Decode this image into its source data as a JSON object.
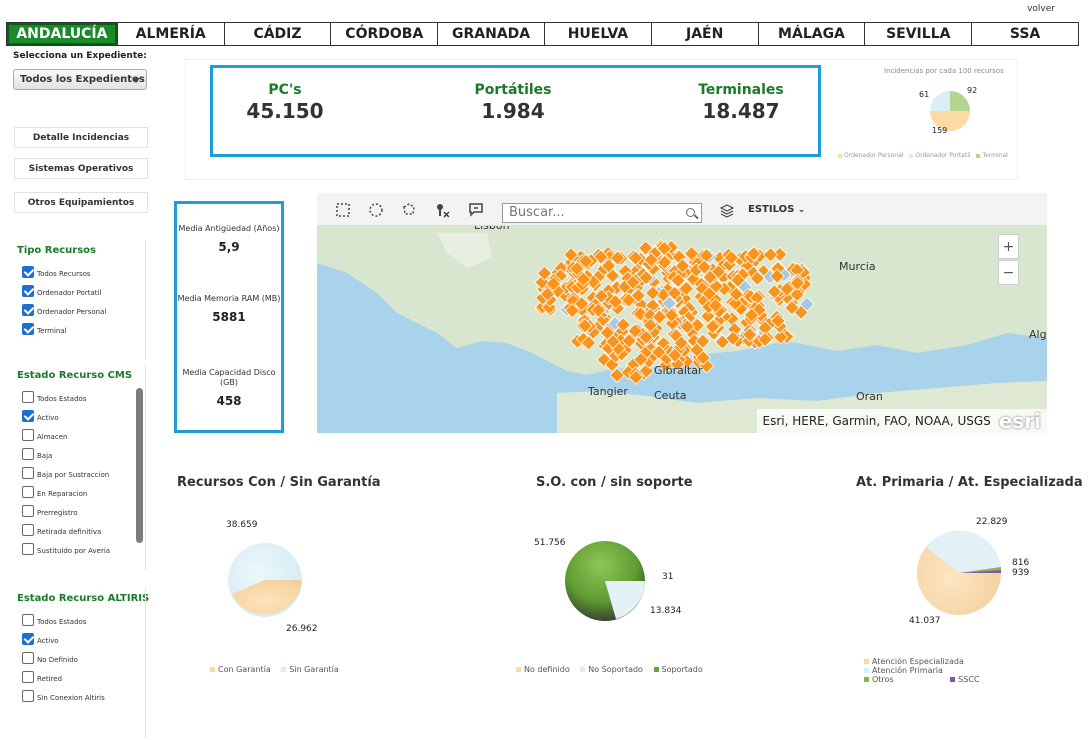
{
  "header": {
    "volver": "volver",
    "tabs": [
      "ANDALUCÍA",
      "ALMERÍA",
      "CÁDIZ",
      "CÓRDOBA",
      "GRANADA",
      "HUELVA",
      "JAÉN",
      "MÁLAGA",
      "SEVILLA",
      "SSA"
    ]
  },
  "sidebar": {
    "expediente_label": "Selecciona un Expediente:",
    "expediente_value": "Todos los Expedientes",
    "buttons": [
      "Detalle Incidencias",
      "Sistemas Operativos",
      "Otros Equipamientos"
    ],
    "tipo": {
      "title": "Tipo Recursos",
      "items": [
        {
          "label": "Todos Recursos",
          "checked": true
        },
        {
          "label": "Ordenador Portatil",
          "checked": true
        },
        {
          "label": "Ordenador Personal",
          "checked": true
        },
        {
          "label": "Terminal",
          "checked": true
        }
      ]
    },
    "cms": {
      "title": "Estado Recurso CMS",
      "items": [
        {
          "label": "Todos Estados",
          "checked": false
        },
        {
          "label": "Activo",
          "checked": true
        },
        {
          "label": "Almacen",
          "checked": false
        },
        {
          "label": "Baja",
          "checked": false
        },
        {
          "label": "Baja por Sustraccion",
          "checked": false
        },
        {
          "label": "En Reparacion",
          "checked": false
        },
        {
          "label": "Prerregistro",
          "checked": false
        },
        {
          "label": "Retirada definitiva",
          "checked": false
        },
        {
          "label": "Sustituido por Averia",
          "checked": false
        }
      ]
    },
    "altiris": {
      "title": "Estado Recurso ALTIRIS",
      "items": [
        {
          "label": "Todos Estados",
          "checked": false
        },
        {
          "label": "Activo",
          "checked": true
        },
        {
          "label": "No Definido",
          "checked": false
        },
        {
          "label": "Retired",
          "checked": false
        },
        {
          "label": "Sin Conexion Altiris",
          "checked": false
        }
      ]
    }
  },
  "stats": {
    "pcs": {
      "label": "PC's",
      "value": "45.150"
    },
    "portatiles": {
      "label": "Portátiles",
      "value": "1.984"
    },
    "terminales": {
      "label": "Terminales",
      "value": "18.487"
    }
  },
  "incidencias": {
    "title": "Incidencias por cada 100 recursos",
    "labels": [
      "61",
      "92",
      "159"
    ],
    "legend": [
      "Ordenador Personal",
      "Ordenador Portatil",
      "Terminal"
    ]
  },
  "info": {
    "antiguedad": {
      "title": "Media Antigüedad (Años)",
      "value": "5,9"
    },
    "memoria": {
      "title": "Media Memoria RAM (MB)",
      "value": "5881"
    },
    "disco": {
      "title": "Media Capacidad Disco (GB)",
      "value": "458"
    }
  },
  "map": {
    "search_placeholder": "Buscar...",
    "estilos": "ESTILOS",
    "zoom_in": "+",
    "zoom_out": "−",
    "attribution": "Esri, HERE, Garmin, FAO, NOAA, USGS",
    "esri": "esri",
    "cities": [
      "Murcia",
      "Tangier",
      "Ceuta",
      "Oran",
      "Alg",
      "Gibraltar",
      "Lisbon"
    ]
  },
  "charts": {
    "garantia": {
      "title": "Recursos Con / Sin Garantía",
      "labels": [
        "38.659",
        "26.962"
      ],
      "legend": [
        "Con Garantía",
        "Sin Garantía"
      ]
    },
    "soporte": {
      "title": "S.O. con / sin soporte",
      "labels": [
        "51.756",
        "31",
        "13.834"
      ],
      "legend": [
        "No definido",
        "No Soportado",
        "Soportado"
      ]
    },
    "primaria": {
      "title": "At. Primaria / At. Especializada",
      "labels": [
        "22.829",
        "816",
        "939",
        "41.037"
      ],
      "legend": [
        "Atención Especializada",
        "Atención Primaria",
        "Otros",
        "SSCC"
      ]
    }
  },
  "colors": {
    "accent_green": "#1b7a2a",
    "frame_blue": "#1c9fd6",
    "peach": "#fcd9a5",
    "light_blue": "#daeef5",
    "green": "#6aa636",
    "purple": "#7d5aa6",
    "marker_orange": "#f7941d"
  }
}
